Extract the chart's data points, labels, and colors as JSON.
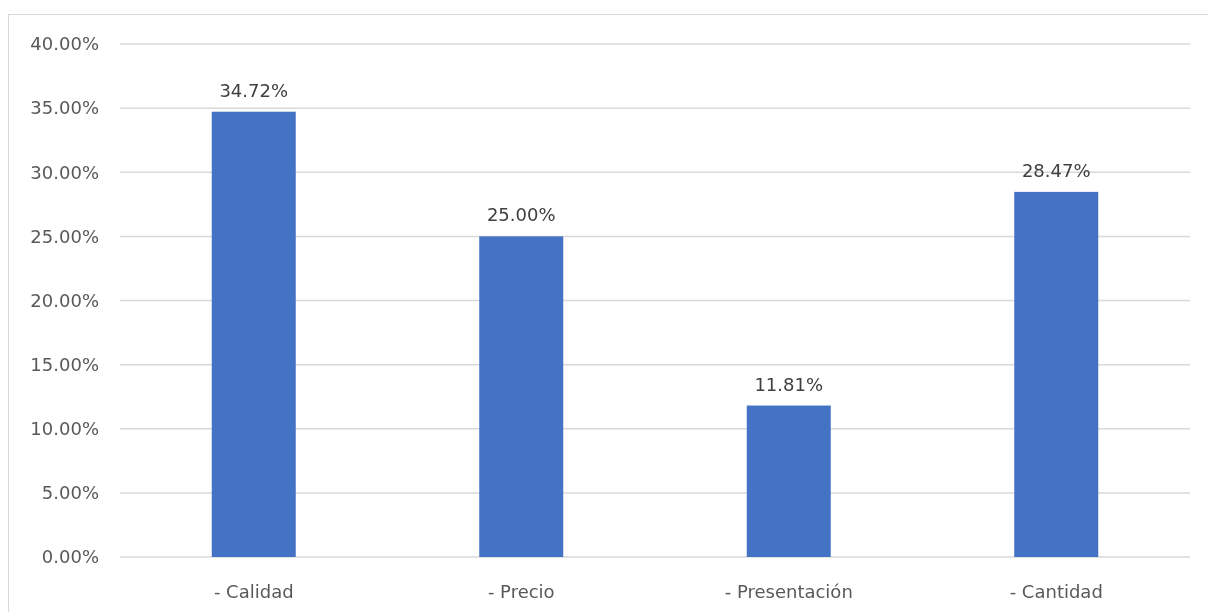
{
  "chart_data": {
    "type": "bar",
    "categories": [
      "- Calidad",
      "- Precio",
      "- Presentación",
      "- Cantidad"
    ],
    "values": [
      34.72,
      25,
      11.81,
      28.47
    ],
    "value_labels": [
      "34.72%",
      "25.00%",
      "11.81%",
      "28.47%"
    ],
    "color": "#4472c4",
    "ylim": [
      0,
      40
    ],
    "yticks": [
      {
        "value": 0,
        "label": "0.00%"
      },
      {
        "value": 5,
        "label": "5.00%"
      },
      {
        "value": 10,
        "label": "10.00%"
      },
      {
        "value": 15,
        "label": "15.00%"
      },
      {
        "value": 20,
        "label": "20.00%"
      },
      {
        "value": 25,
        "label": "25.00%"
      },
      {
        "value": 30,
        "label": "30.00%"
      },
      {
        "value": 35,
        "label": "35.00%"
      },
      {
        "value": 40,
        "label": "40.00%"
      }
    ],
    "grid": "y"
  }
}
